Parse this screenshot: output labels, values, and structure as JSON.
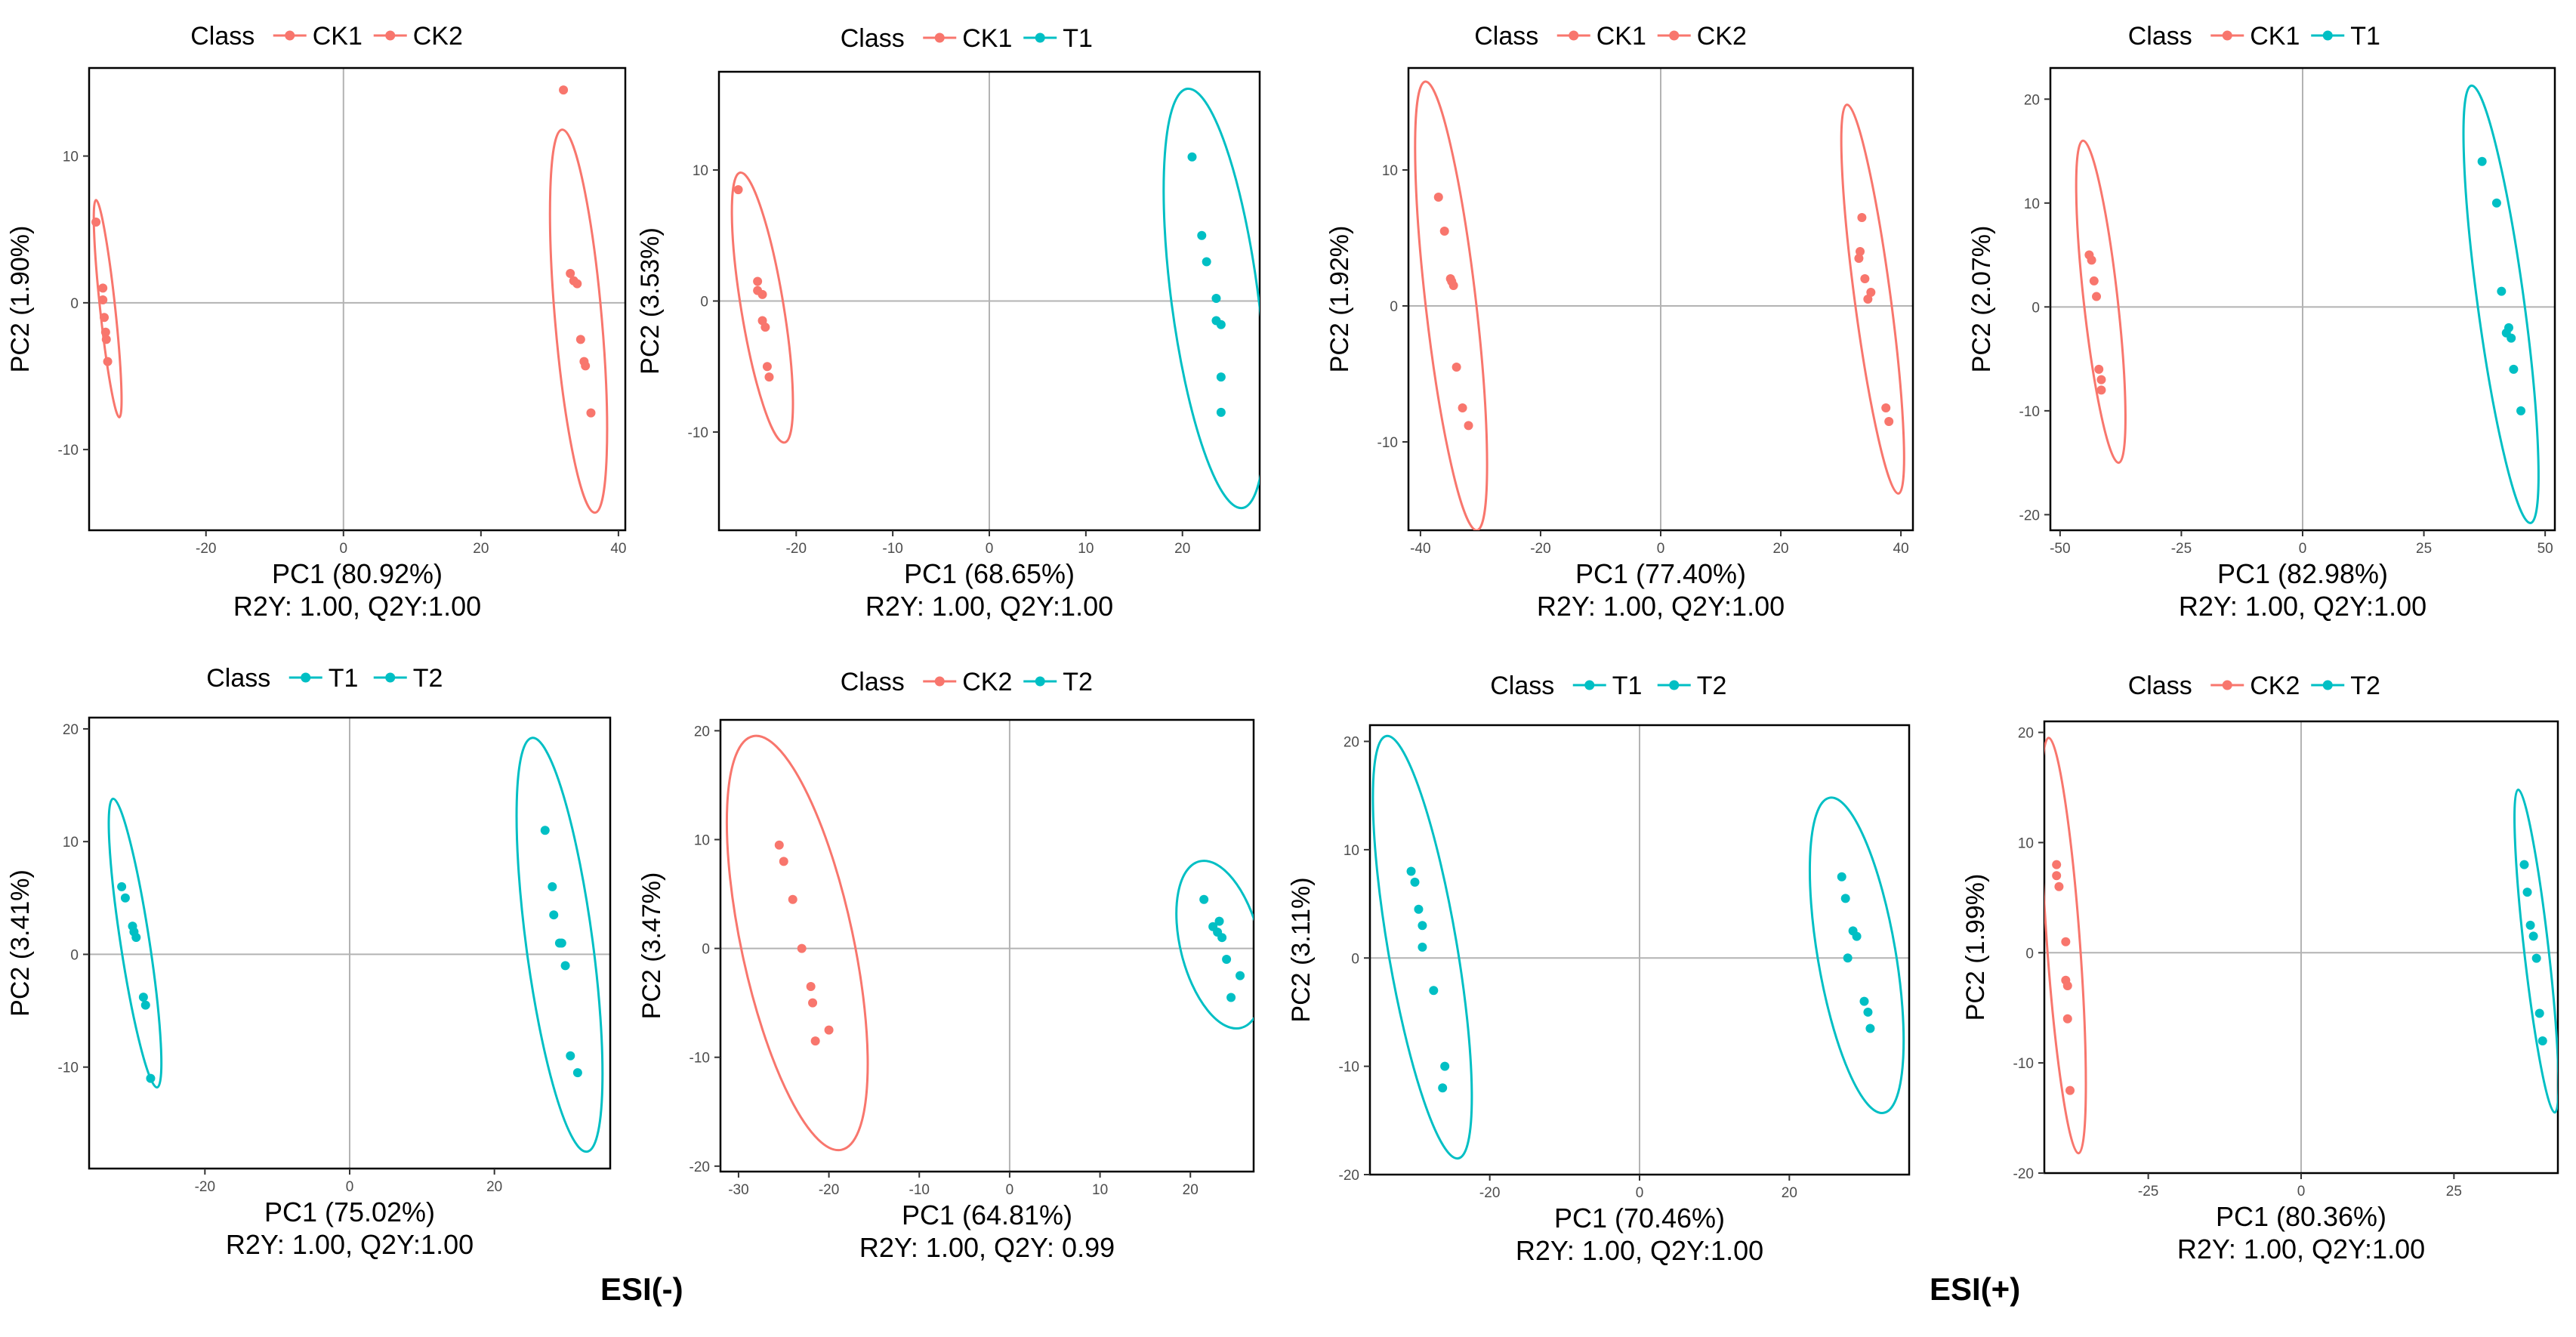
{
  "colors": {
    "ck_red": "#F8766D",
    "teal": "#00BFC4",
    "axis": "#000000",
    "zero_line": "#b3b3b3"
  },
  "group_labels": {
    "neg": "ESI(-)",
    "pos": "ESI(+)"
  },
  "chart_data": [
    {
      "type": "scatter",
      "group": "ESI(-)",
      "legend_title": "Class",
      "legend": [
        "CK1",
        "CK2"
      ],
      "xlabel": "PC1 (80.92%)",
      "ylabel": "PC2 (1.90%)",
      "stats": "R2Y: 1.00, Q2Y:1.00",
      "xlim": [
        -37,
        41
      ],
      "ylim": [
        -15.5,
        16
      ],
      "xticks": [
        -20,
        0,
        20,
        40
      ],
      "yticks": [
        -10,
        0,
        10
      ],
      "series": [
        {
          "name": "CK1",
          "points": [
            [
              -36,
              5.5
            ],
            [
              -35,
              1
            ],
            [
              -35,
              0.2
            ],
            [
              -34.8,
              -1
            ],
            [
              -34.6,
              -2
            ],
            [
              -34.5,
              -2.5
            ],
            [
              -34.3,
              -4
            ]
          ],
          "ellipse": {
            "p1": [
              -36,
              7
            ],
            "p2": [
              -32.6,
              -7.8
            ],
            "w": 1.1
          }
        },
        {
          "name": "CK2",
          "points": [
            [
              32,
              14.5
            ],
            [
              33,
              2
            ],
            [
              33.5,
              1.5
            ],
            [
              34,
              1.3
            ],
            [
              34.5,
              -2.5
            ],
            [
              35,
              -4
            ],
            [
              35.2,
              -4.3
            ],
            [
              36,
              -7.5
            ]
          ],
          "ellipse": {
            "p1": [
              31.8,
              11.8
            ],
            "p2": [
              36.6,
              -14.3
            ],
            "w": 3.4
          }
        }
      ]
    },
    {
      "type": "scatter",
      "group": "ESI(-)",
      "legend_title": "Class",
      "legend": [
        "CK1",
        "T1"
      ],
      "xlabel": "PC1 (68.65%)",
      "ylabel": "PC2 (3.53%)",
      "stats": "R2Y: 1.00, Q2Y:1.00",
      "xlim": [
        -28,
        28
      ],
      "ylim": [
        -17.5,
        17.5
      ],
      "xticks": [
        -20,
        -10,
        0,
        10,
        20
      ],
      "yticks": [
        -10,
        0,
        10
      ],
      "series": [
        {
          "name": "CK1",
          "points": [
            [
              -26,
              8.5
            ],
            [
              -24,
              1.5
            ],
            [
              -24,
              0.8
            ],
            [
              -23.5,
              0.5
            ],
            [
              -23.5,
              -1.5
            ],
            [
              -23.2,
              -2
            ],
            [
              -23,
              -5
            ],
            [
              -22.8,
              -5.8
            ]
          ],
          "ellipse": {
            "p1": [
              -25.8,
              9.8
            ],
            "p2": [
              -21.2,
              -10.8
            ],
            "w": 2.2
          }
        },
        {
          "name": "T1",
          "points": [
            [
              21,
              11
            ],
            [
              22,
              5
            ],
            [
              22.5,
              3
            ],
            [
              23.5,
              0.2
            ],
            [
              23.5,
              -1.5
            ],
            [
              24,
              -1.8
            ],
            [
              24,
              -5.8
            ],
            [
              24,
              -8.5
            ]
          ],
          "ellipse": {
            "p1": [
              20.5,
              16.2
            ],
            "p2": [
              26.2,
              -15.8
            ],
            "w": 4.5
          }
        }
      ]
    },
    {
      "type": "scatter",
      "group": "ESI(+)",
      "legend_title": "Class",
      "legend": [
        "CK1",
        "CK2"
      ],
      "xlabel": "PC1 (77.40%)",
      "ylabel": "PC2 (1.92%)",
      "stats": "R2Y: 1.00, Q2Y:1.00",
      "xlim": [
        -42,
        42
      ],
      "ylim": [
        -16.5,
        17.5
      ],
      "xticks": [
        -40,
        -20,
        0,
        20,
        40
      ],
      "yticks": [
        -10,
        0,
        10
      ],
      "series": [
        {
          "name": "CK1",
          "points": [
            [
              -37,
              8
            ],
            [
              -36,
              5.5
            ],
            [
              -35,
              2
            ],
            [
              -34.8,
              1.8
            ],
            [
              -34.5,
              1.5
            ],
            [
              -34,
              -4.5
            ],
            [
              -33,
              -7.5
            ],
            [
              -32,
              -8.8
            ]
          ],
          "ellipse": {
            "p1": [
              -39.2,
              16.5
            ],
            "p2": [
              -30.6,
              -16.5
            ],
            "w": 4.2
          }
        },
        {
          "name": "CK2",
          "points": [
            [
              33.5,
              6.5
            ],
            [
              33.2,
              4
            ],
            [
              33,
              3.5
            ],
            [
              34,
              2
            ],
            [
              34.5,
              0.5
            ],
            [
              35,
              1
            ],
            [
              37.5,
              -7.5
            ],
            [
              38,
              -8.5
            ]
          ],
          "ellipse": {
            "p1": [
              31,
              14.8
            ],
            "p2": [
              39.6,
              -13.8
            ],
            "w": 3.0
          }
        }
      ]
    },
    {
      "type": "scatter",
      "group": "ESI(+)",
      "legend_title": "Class",
      "legend": [
        "CK1",
        "T1"
      ],
      "xlabel": "PC1 (82.98%)",
      "ylabel": "PC2 (2.07%)",
      "stats": "R2Y: 1.00, Q2Y:1.00",
      "xlim": [
        -52,
        52
      ],
      "ylim": [
        -21.5,
        23
      ],
      "xticks": [
        -50,
        -25,
        0,
        25,
        50
      ],
      "yticks": [
        -20,
        -10,
        0,
        10,
        20
      ],
      "series": [
        {
          "name": "CK1",
          "points": [
            [
              -44,
              5
            ],
            [
              -43.5,
              4.5
            ],
            [
              -43,
              2.5
            ],
            [
              -42.5,
              1
            ],
            [
              -42,
              -6
            ],
            [
              -41.5,
              -7
            ],
            [
              -41.5,
              -8
            ]
          ],
          "ellipse": {
            "p1": [
              -45.3,
              16
            ],
            "p2": [
              -37.9,
              -15
            ],
            "w": 3.5
          }
        },
        {
          "name": "T1",
          "points": [
            [
              37,
              14
            ],
            [
              40,
              10
            ],
            [
              41,
              1.5
            ],
            [
              42,
              -2.5
            ],
            [
              42.5,
              -2
            ],
            [
              43,
              -3
            ],
            [
              43.5,
              -6
            ],
            [
              45,
              -10
            ]
          ],
          "ellipse": {
            "p1": [
              34.8,
              21.3
            ],
            "p2": [
              47,
              -20.8
            ],
            "w": 4.8
          }
        }
      ]
    },
    {
      "type": "scatter",
      "group": "ESI(-)",
      "legend_title": "Class",
      "legend": [
        "T1",
        "T2"
      ],
      "xlabel": "PC1 (75.02%)",
      "ylabel": "PC2 (3.41%)",
      "stats": "R2Y: 1.00, Q2Y:1.00",
      "xlim": [
        -36,
        36
      ],
      "ylim": [
        -19,
        21
      ],
      "xticks": [
        -20,
        0,
        20
      ],
      "yticks": [
        -10,
        0,
        10,
        20
      ],
      "series": [
        {
          "name": "T1",
          "points": [
            [
              -31.5,
              6
            ],
            [
              -31,
              5
            ],
            [
              -30,
              2.5
            ],
            [
              -29.8,
              2
            ],
            [
              -29.5,
              1.5
            ],
            [
              -28.5,
              -3.8
            ],
            [
              -28.2,
              -4.5
            ],
            [
              -27.5,
              -11
            ]
          ],
          "ellipse": {
            "p1": [
              -32.7,
              13.8
            ],
            "p2": [
              -26.6,
              -11.8
            ],
            "w": 2.0
          }
        },
        {
          "name": "T2",
          "points": [
            [
              27,
              11
            ],
            [
              28,
              6
            ],
            [
              28.2,
              3.5
            ],
            [
              29,
              1
            ],
            [
              29.3,
              1
            ],
            [
              29.8,
              -1
            ],
            [
              30.5,
              -9
            ],
            [
              31.5,
              -10.5
            ]
          ],
          "ellipse": {
            "p1": [
              25.2,
              19.2
            ],
            "p2": [
              32.8,
              -17.5
            ],
            "w": 4.6
          }
        }
      ]
    },
    {
      "type": "scatter",
      "group": "ESI(-)",
      "legend_title": "Class",
      "legend": [
        "CK2",
        "T2"
      ],
      "xlabel": "PC1 (64.81%)",
      "ylabel": "PC2 (3.47%)",
      "stats": "R2Y: 1.00, Q2Y: 0.99",
      "xlim": [
        -32,
        27
      ],
      "ylim": [
        -20.5,
        21
      ],
      "xticks": [
        -30,
        -20,
        -10,
        0,
        10,
        20
      ],
      "yticks": [
        -20,
        -10,
        0,
        10,
        20
      ],
      "series": [
        {
          "name": "CK2",
          "points": [
            [
              -25.5,
              9.5
            ],
            [
              -25,
              8
            ],
            [
              -24,
              4.5
            ],
            [
              -23,
              0
            ],
            [
              -22,
              -3.5
            ],
            [
              -21.8,
              -5
            ],
            [
              -21.5,
              -8.5
            ],
            [
              -20,
              -7.5
            ]
          ],
          "ellipse": {
            "p1": [
              -28.4,
              19.5
            ],
            "p2": [
              -18.6,
              -18.5
            ],
            "w": 6.2
          }
        },
        {
          "name": "T2",
          "points": [
            [
              21.5,
              4.5
            ],
            [
              22.5,
              2
            ],
            [
              23,
              1.5
            ],
            [
              23.2,
              2.5
            ],
            [
              23.5,
              1
            ],
            [
              24,
              -1
            ],
            [
              24.5,
              -4.5
            ],
            [
              25.5,
              -2.5
            ]
          ],
          "ellipse": {
            "p1": [
              21,
              8
            ],
            "p2": [
              25.6,
              -7.3
            ],
            "w": 4.4
          }
        }
      ]
    },
    {
      "type": "scatter",
      "group": "ESI(+)",
      "legend_title": "Class",
      "legend": [
        "T1",
        "T2"
      ],
      "xlabel": "PC1 (70.46%)",
      "ylabel": "PC2 (3.11%)",
      "stats": "R2Y: 1.00, Q2Y:1.00",
      "xlim": [
        -36,
        36
      ],
      "ylim": [
        -20,
        21.5
      ],
      "xticks": [
        -20,
        0,
        20
      ],
      "yticks": [
        -20,
        -10,
        0,
        10,
        20
      ],
      "series": [
        {
          "name": "T1",
          "points": [
            [
              -30.5,
              8
            ],
            [
              -30,
              7
            ],
            [
              -29.5,
              4.5
            ],
            [
              -29,
              3
            ],
            [
              -29,
              1
            ],
            [
              -27.5,
              -3
            ],
            [
              -26,
              -10
            ],
            [
              -26.3,
              -12
            ]
          ],
          "ellipse": {
            "p1": [
              -33.8,
              20.5
            ],
            "p2": [
              -24.2,
              -18.5
            ],
            "w": 4.6
          }
        },
        {
          "name": "T2",
          "points": [
            [
              27,
              7.5
            ],
            [
              27.5,
              5.5
            ],
            [
              28.5,
              2.5
            ],
            [
              29,
              2
            ],
            [
              27.8,
              0
            ],
            [
              30,
              -4
            ],
            [
              30.5,
              -5
            ],
            [
              30.8,
              -6.5
            ]
          ],
          "ellipse": {
            "p1": [
              25.4,
              14.8
            ],
            "p2": [
              32.6,
              -14.3
            ],
            "w": 5.2
          }
        }
      ]
    },
    {
      "type": "scatter",
      "group": "ESI(+)",
      "legend_title": "Class",
      "legend": [
        "CK2",
        "T2"
      ],
      "xlabel": "PC1 (80.36%)",
      "ylabel": "PC2 (1.99%)",
      "stats": "R2Y: 1.00, Q2Y:1.00",
      "xlim": [
        -42,
        42
      ],
      "ylim": [
        -20,
        21
      ],
      "xticks": [
        -25,
        0,
        25
      ],
      "yticks": [
        -20,
        -10,
        0,
        10,
        20
      ],
      "series": [
        {
          "name": "CK2",
          "points": [
            [
              -40,
              8
            ],
            [
              -40,
              7
            ],
            [
              -39.6,
              6
            ],
            [
              -38.5,
              1
            ],
            [
              -38.5,
              -2.5
            ],
            [
              -38.2,
              -3
            ],
            [
              -38.2,
              -6
            ],
            [
              -37.8,
              -12.5
            ]
          ],
          "ellipse": {
            "p1": [
              -41.3,
              19.5
            ],
            "p2": [
              -36.4,
              -18.2
            ],
            "w": 2.7
          }
        },
        {
          "name": "T2",
          "points": [
            [
              36.5,
              8
            ],
            [
              37,
              5.5
            ],
            [
              37.5,
              2.5
            ],
            [
              38,
              1.5
            ],
            [
              38.5,
              -0.5
            ],
            [
              39,
              -5.5
            ],
            [
              39.5,
              -8
            ]
          ],
          "ellipse": {
            "p1": [
              35.5,
              14.8
            ],
            "p2": [
              41.5,
              -14.5
            ],
            "w": 2.0
          }
        }
      ]
    }
  ]
}
